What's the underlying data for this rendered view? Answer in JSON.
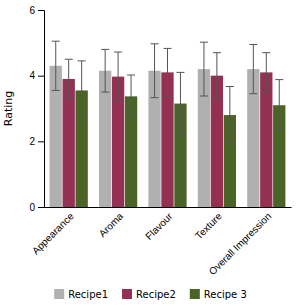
{
  "chart_data": {
    "type": "bar",
    "categories": [
      "Appearance",
      "Aroma",
      "Flavour",
      "Texture",
      "Overall Impression"
    ],
    "series": [
      {
        "name": "Recipe1",
        "color": "#b0b0b0",
        "values": [
          4.3,
          4.15,
          4.15,
          4.2,
          4.2
        ],
        "errors": [
          0.75,
          0.65,
          0.82,
          0.82,
          0.75
        ]
      },
      {
        "name": "Recipe2",
        "color": "#943054",
        "values": [
          3.9,
          3.97,
          4.1,
          4.0,
          4.1
        ],
        "errors": [
          0.6,
          0.75,
          0.73,
          0.7,
          0.6
        ]
      },
      {
        "name": "Recipe 3",
        "color": "#4a6428",
        "values": [
          3.55,
          3.37,
          3.15,
          2.8,
          3.1
        ],
        "errors": [
          0.9,
          0.65,
          0.95,
          0.87,
          0.78
        ]
      }
    ],
    "ylabel": "Rating",
    "ylim": [
      0,
      6
    ],
    "yticks": [
      0,
      2,
      4,
      6
    ],
    "grid": false,
    "legend": "bottom"
  }
}
